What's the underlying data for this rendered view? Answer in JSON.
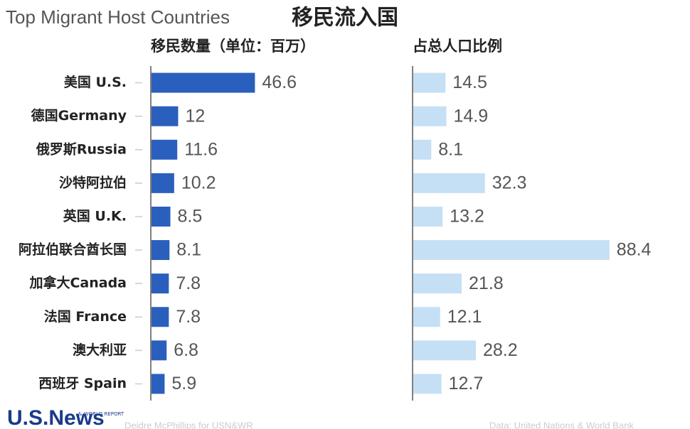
{
  "title": "Top Migrant Host Countries",
  "title_zh": "移民流入国",
  "footer": {
    "logo": "U.S.News",
    "logo_small": "& WORLD REPORT",
    "credit": "Deidre McPhillips for USN&WR",
    "source": "Data: United Nations & World Bank"
  },
  "chart_data": {
    "type": "bar",
    "orientation": "horizontal",
    "categories": [
      "美国 U.S.",
      "德国Germany",
      "俄罗斯Russia",
      "沙特阿拉伯",
      "英国  U.K.",
      "阿拉伯联合酋长国",
      "加拿大Canada",
      "法国 France",
      "澳大利亚",
      "西班牙 Spain"
    ],
    "series": [
      {
        "name": "移民数量（单位：百万）",
        "color": "#2a5fbd",
        "xlim": [
          0,
          50
        ],
        "values": [
          46.6,
          12,
          11.6,
          10.2,
          8.5,
          8.1,
          7.8,
          7.8,
          6.8,
          5.9
        ]
      },
      {
        "name": "占总人口比例",
        "color": "#c5e0f5",
        "xlim": [
          0,
          100
        ],
        "values": [
          14.5,
          14.9,
          8.1,
          32.3,
          13.2,
          88.4,
          21.8,
          12.1,
          28.2,
          12.7
        ]
      }
    ]
  }
}
